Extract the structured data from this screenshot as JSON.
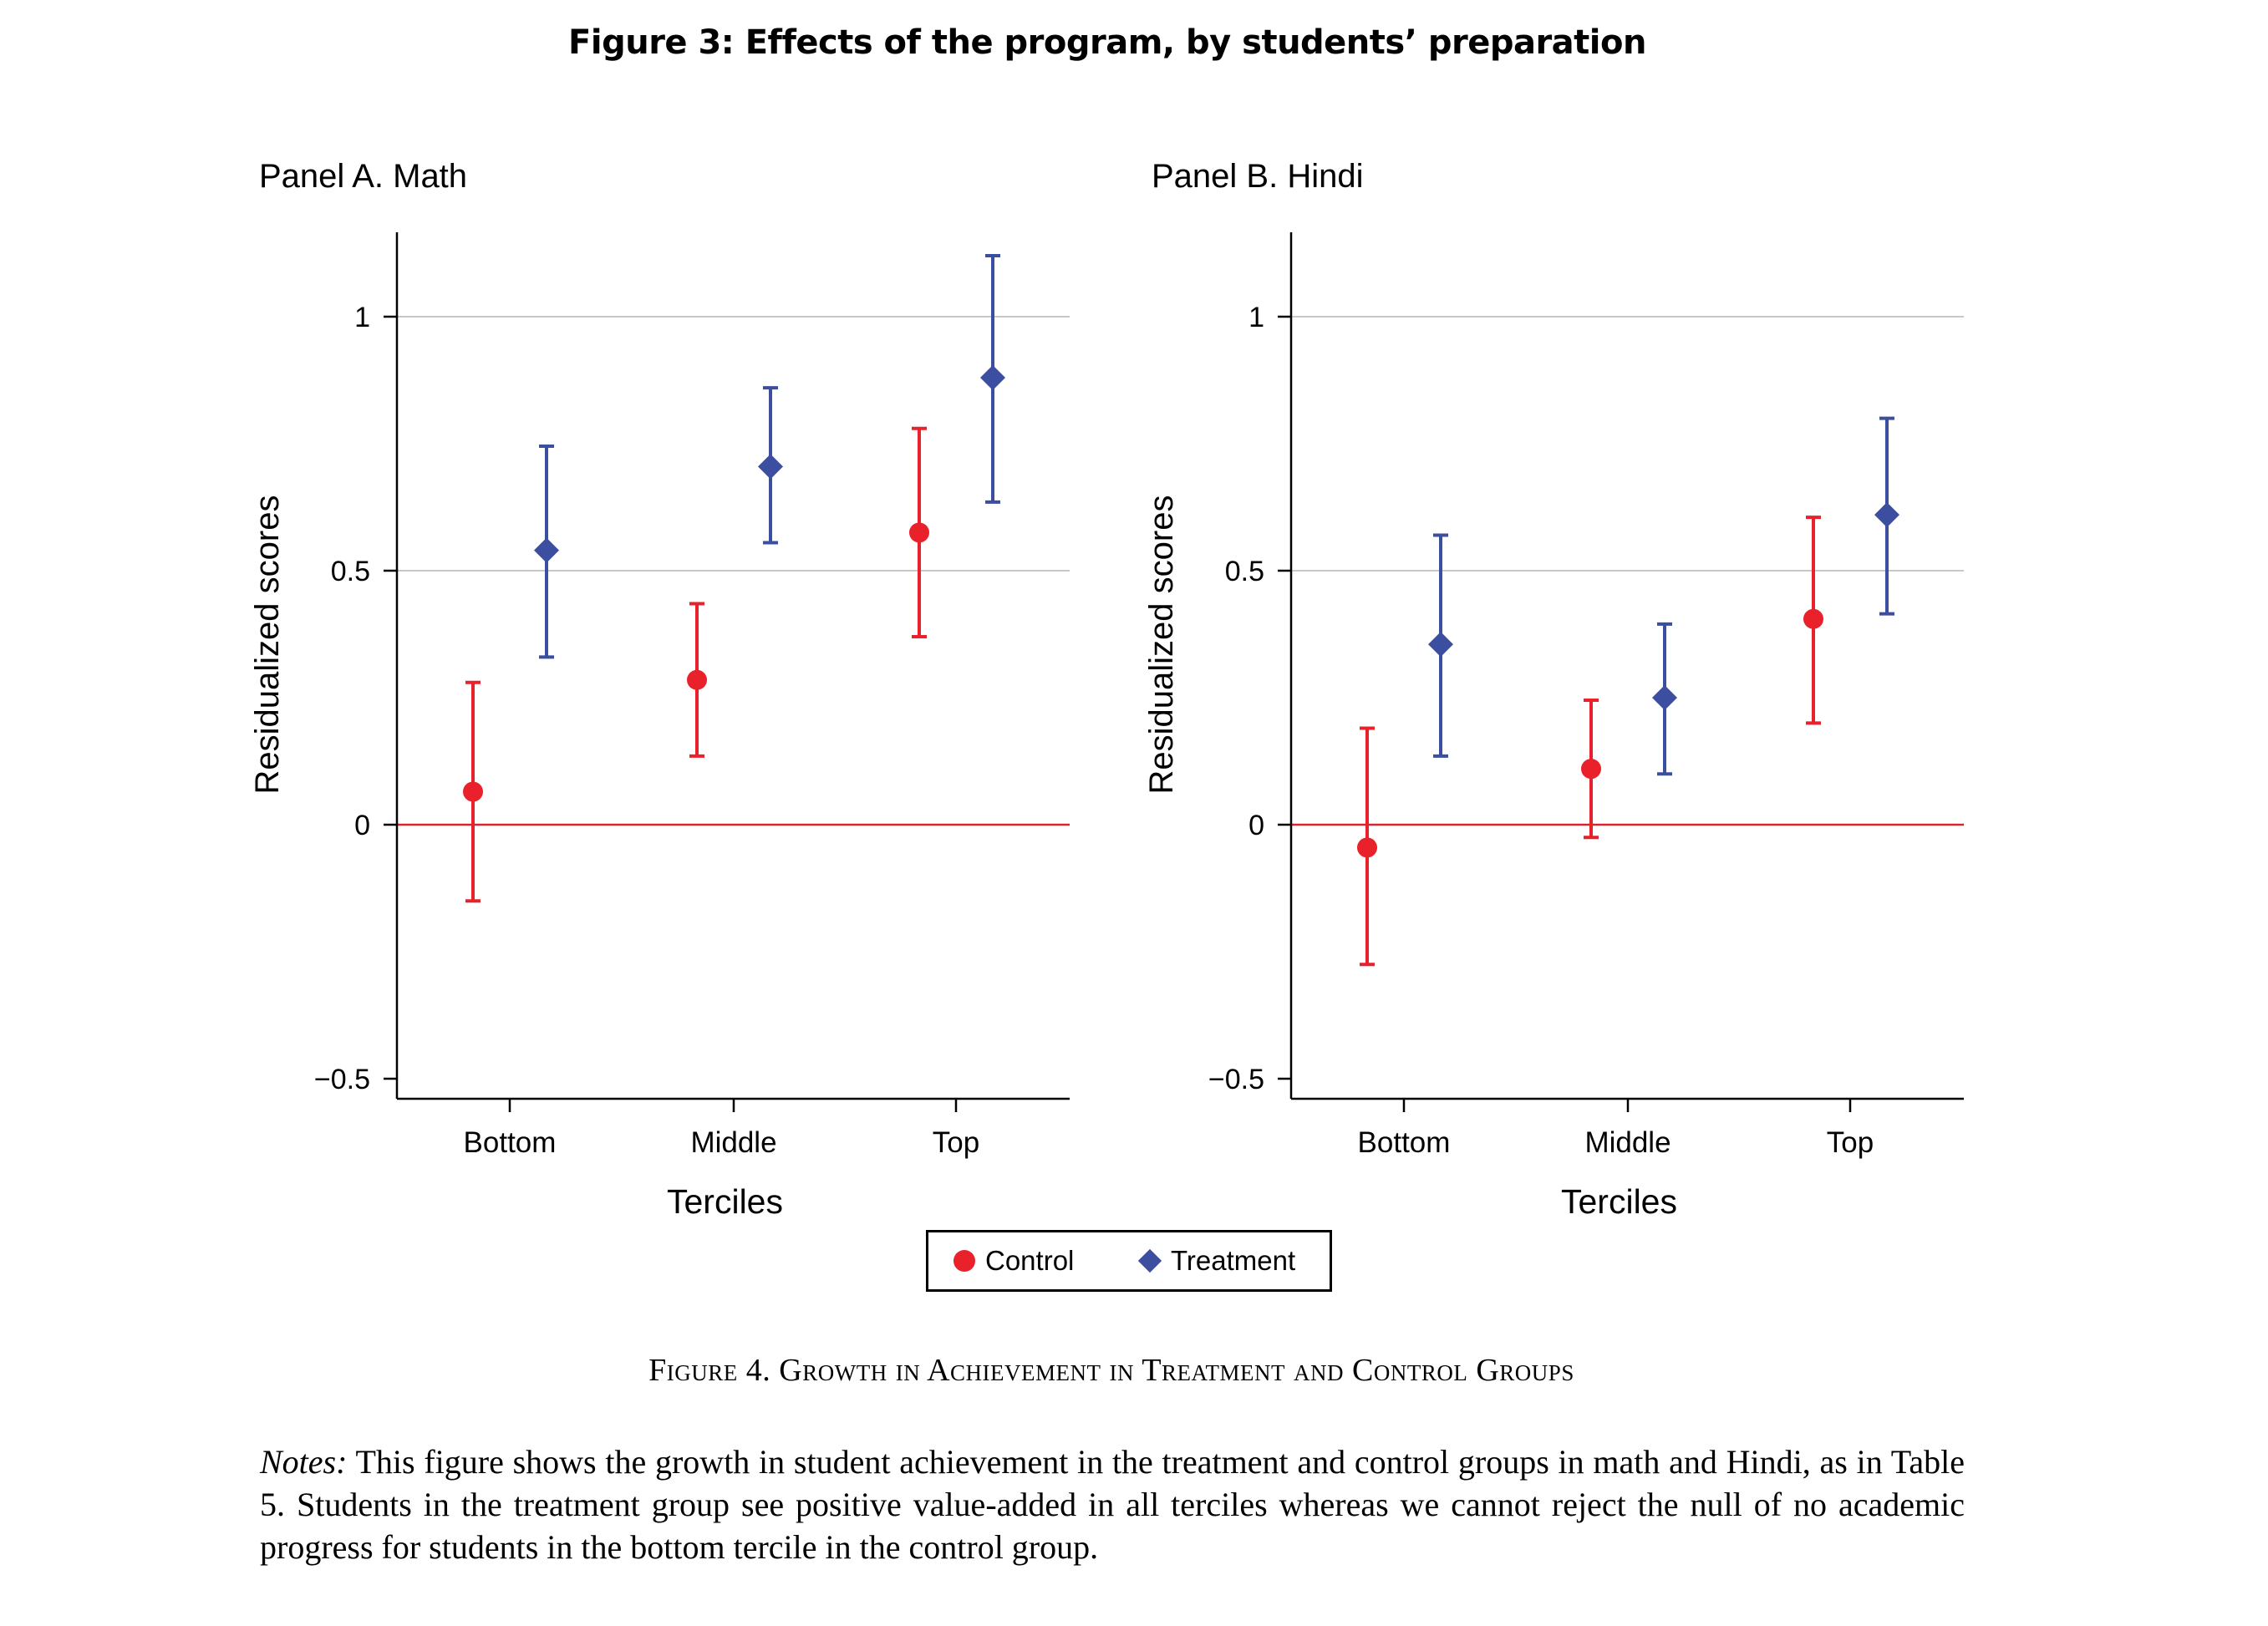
{
  "figure_title": "Figure 3: Effects of the program, by students’ preparation",
  "caption": "Figure 4. Growth in Achievement in Treatment and Control Groups",
  "notes": {
    "label": "Notes:",
    "text": "This figure shows the growth in student achievement in the treatment and control groups in math and Hindi, as in Table 5. Students in the treatment group see positive value-added in all terciles whereas we cannot reject the null of no academic progress for students in the bottom tercile in the control group."
  },
  "legend": {
    "control_label": "Control",
    "treatment_label": "Treatment"
  },
  "colors": {
    "control": "#e8212b",
    "treatment": "#3b4ea0",
    "zero_line": "#d9242f",
    "grid": "#c8c8c8"
  },
  "chart_data": [
    {
      "type": "scatter",
      "title": "Panel A. Math",
      "xlabel": "Terciles",
      "ylabel": "Residualized scores",
      "categories": [
        "Bottom",
        "Middle",
        "Top"
      ],
      "ylim": [
        -0.54,
        1.16
      ],
      "yticks": [
        -0.5,
        0,
        0.5,
        1
      ],
      "ytick_labels": [
        "−0.5",
        "0",
        "0.5",
        "1"
      ],
      "gridlines": [
        0.5,
        1
      ],
      "reference_line": 0,
      "series": [
        {
          "name": "Control",
          "marker": "circle",
          "values": [
            0.065,
            0.285,
            0.575
          ],
          "lower": [
            -0.15,
            0.135,
            0.37
          ],
          "upper": [
            0.28,
            0.435,
            0.78
          ]
        },
        {
          "name": "Treatment",
          "marker": "diamond",
          "values": [
            0.54,
            0.705,
            0.88
          ],
          "lower": [
            0.33,
            0.555,
            0.635
          ],
          "upper": [
            0.745,
            0.86,
            1.12
          ]
        }
      ]
    },
    {
      "type": "scatter",
      "title": "Panel B. Hindi",
      "xlabel": "Terciles",
      "ylabel": "Residualized scores",
      "categories": [
        "Bottom",
        "Middle",
        "Top"
      ],
      "ylim": [
        -0.54,
        1.16
      ],
      "yticks": [
        -0.5,
        0,
        0.5,
        1
      ],
      "ytick_labels": [
        "−0.5",
        "0",
        "0.5",
        "1"
      ],
      "gridlines": [
        0.5,
        1
      ],
      "reference_line": 0,
      "series": [
        {
          "name": "Control",
          "marker": "circle",
          "values": [
            -0.045,
            0.11,
            0.405
          ],
          "lower": [
            -0.275,
            -0.025,
            0.2
          ],
          "upper": [
            0.19,
            0.245,
            0.605
          ]
        },
        {
          "name": "Treatment",
          "marker": "diamond",
          "values": [
            0.355,
            0.25,
            0.61
          ],
          "lower": [
            0.135,
            0.1,
            0.415
          ],
          "upper": [
            0.57,
            0.395,
            0.8
          ]
        }
      ]
    }
  ]
}
